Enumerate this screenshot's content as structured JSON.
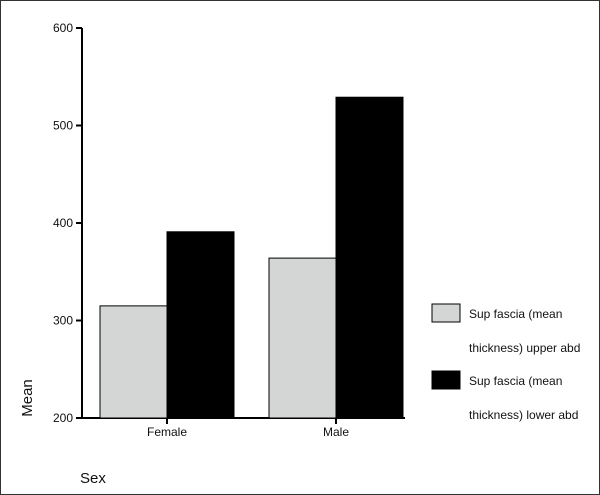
{
  "chart_data": {
    "type": "bar",
    "categories": [
      "Female",
      "Male"
    ],
    "series": [
      {
        "name": "Sup fascia (mean thickness) upper abd",
        "legend_lines": [
          "Sup fascia (mean",
          "thickness) upper abd"
        ],
        "color": "#d3d6d5",
        "values": [
          315,
          364
        ]
      },
      {
        "name": "Sup fascia (mean thickness) lower abd",
        "legend_lines": [
          "Sup fascia (mean",
          "thickness) lower abd"
        ],
        "color": "#000000",
        "values": [
          391,
          529
        ]
      }
    ],
    "yticks": [
      200,
      300,
      400,
      500,
      600
    ],
    "ylim": [
      200,
      600
    ],
    "xlabel": "Sex",
    "ylabel": "Mean",
    "grid": false,
    "legend_position": "right"
  }
}
